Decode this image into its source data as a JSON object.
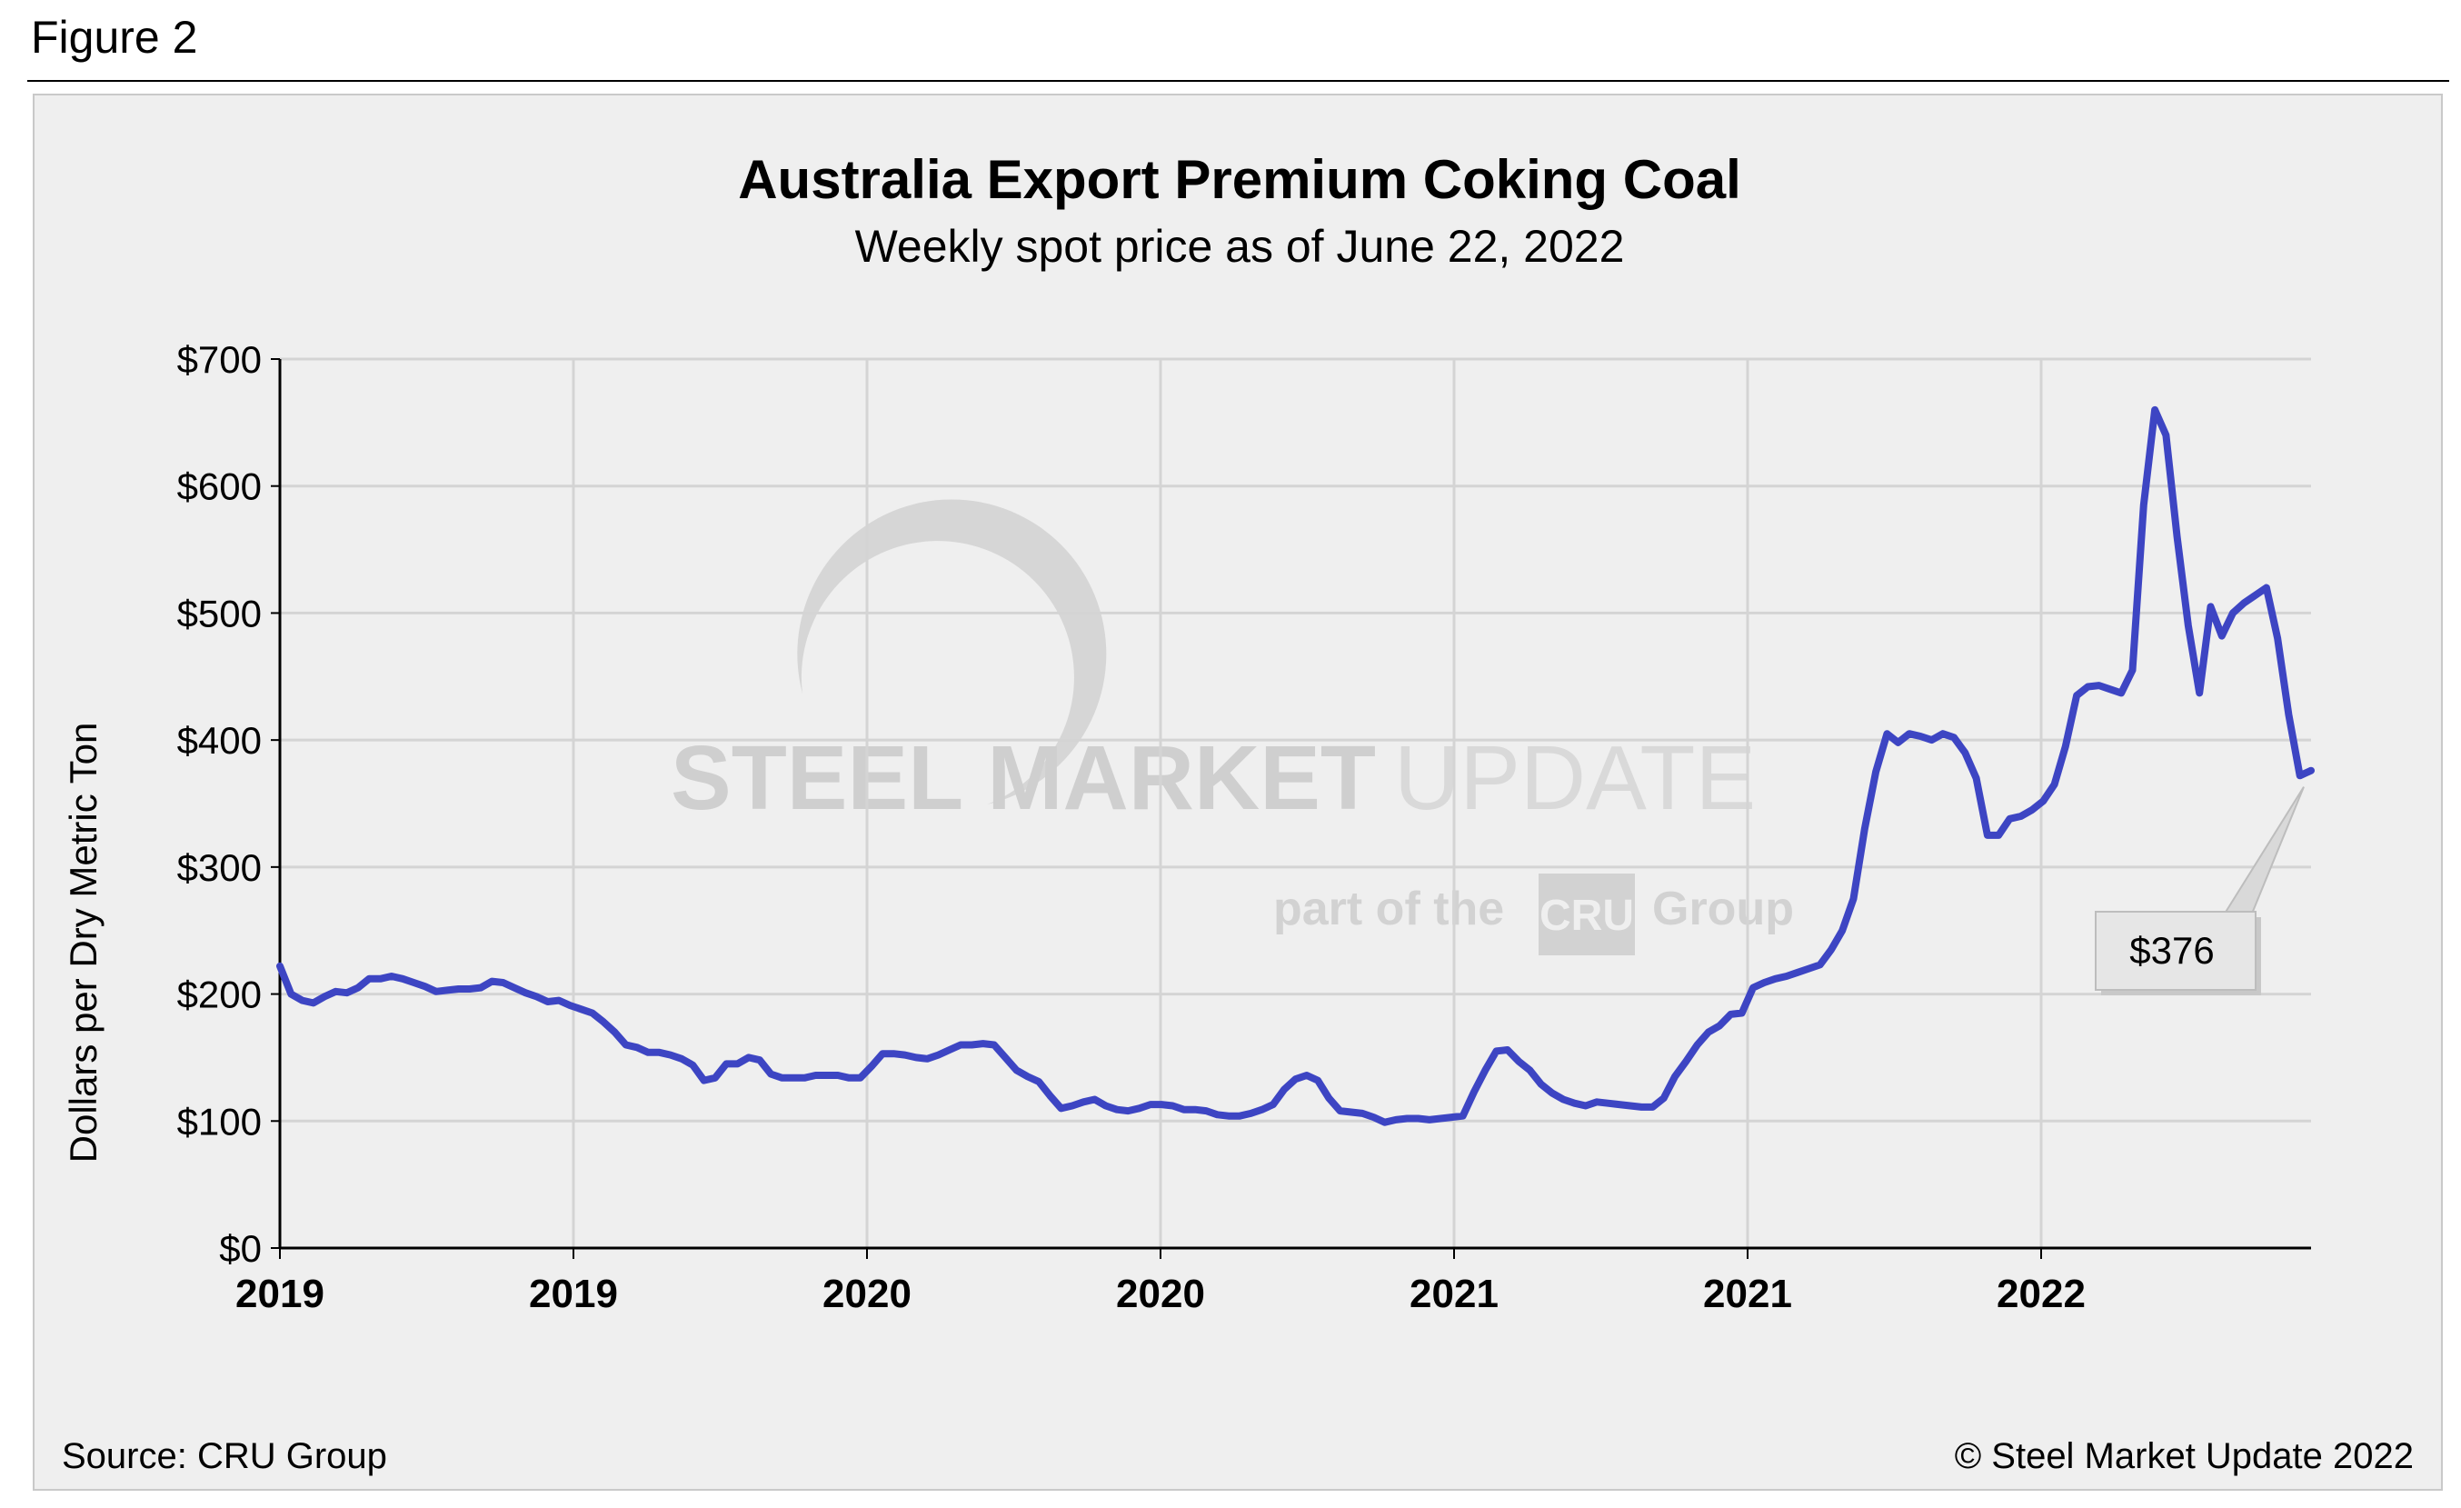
{
  "figure_label": "Figure 2",
  "footer": {
    "source": "Source: CRU Group",
    "copyright": "© Steel Market Update 2022"
  },
  "watermark": {
    "line1_bold": "STEEL MARKET",
    "line1_light": "UPDATE",
    "line2_a": "part of the",
    "line2_logo": "CRU",
    "line2_b": "Group"
  },
  "colors": {
    "line": "#3d45c3",
    "grid": "#d4d4d4",
    "panel": "#efefef",
    "callout": "#e6e6e6"
  },
  "chart_data": {
    "type": "line",
    "title": "Australia Export Premium Coking Coal",
    "subtitle": "Weekly spot price as of June 22, 2022",
    "ylabel": "Dollars per Dry Metric Ton",
    "xlabel": "",
    "ylim": [
      0,
      700
    ],
    "yticks": [
      0,
      100,
      200,
      300,
      400,
      500,
      600,
      700
    ],
    "ytick_labels": [
      "$0",
      "$100",
      "$200",
      "$300",
      "$400",
      "$500",
      "$600",
      "$700"
    ],
    "xtick_labels": [
      "2019",
      "2019",
      "2020",
      "2020",
      "2021",
      "2021",
      "2022"
    ],
    "grid": true,
    "annotation": {
      "label": "$376",
      "value": 376
    },
    "series": [
      {
        "values": [
          222,
          200,
          195,
          193,
          198,
          202,
          201,
          205,
          212,
          212,
          214,
          212,
          209,
          206,
          202,
          203,
          204,
          204,
          205,
          210,
          209,
          205,
          201,
          198,
          194,
          195,
          191,
          188,
          185,
          178,
          170,
          160,
          158,
          154,
          154,
          152,
          149,
          144,
          132,
          134,
          145,
          145,
          150,
          148,
          137,
          134,
          134,
          134,
          136,
          136,
          136,
          134,
          134,
          143,
          153,
          153,
          152,
          150,
          149,
          152,
          156,
          160,
          160,
          161,
          160,
          150,
          140,
          135,
          131,
          120,
          110,
          112,
          115,
          117,
          112,
          109,
          108,
          110,
          113,
          113,
          112,
          109,
          109,
          108,
          105,
          104,
          104,
          106,
          109,
          113,
          125,
          133,
          136,
          132,
          118,
          108,
          107,
          106,
          103,
          99,
          101,
          102,
          102,
          101,
          102,
          103,
          104,
          123,
          140,
          155,
          156,
          147,
          140,
          129,
          122,
          117,
          114,
          112,
          115,
          114,
          113,
          112,
          111,
          111,
          118,
          135,
          147,
          160,
          170,
          175,
          184,
          185,
          205,
          209,
          212,
          214,
          217,
          220,
          223,
          235,
          250,
          275,
          330,
          375,
          405,
          398,
          405,
          403,
          400,
          405,
          402,
          390,
          370,
          325,
          325,
          338,
          340,
          345,
          352,
          365,
          395,
          435,
          442,
          443,
          440,
          437,
          455,
          585,
          660,
          640,
          560,
          490,
          437,
          505,
          482,
          500,
          508,
          514,
          520,
          480,
          420,
          372,
          376
        ]
      }
    ]
  }
}
